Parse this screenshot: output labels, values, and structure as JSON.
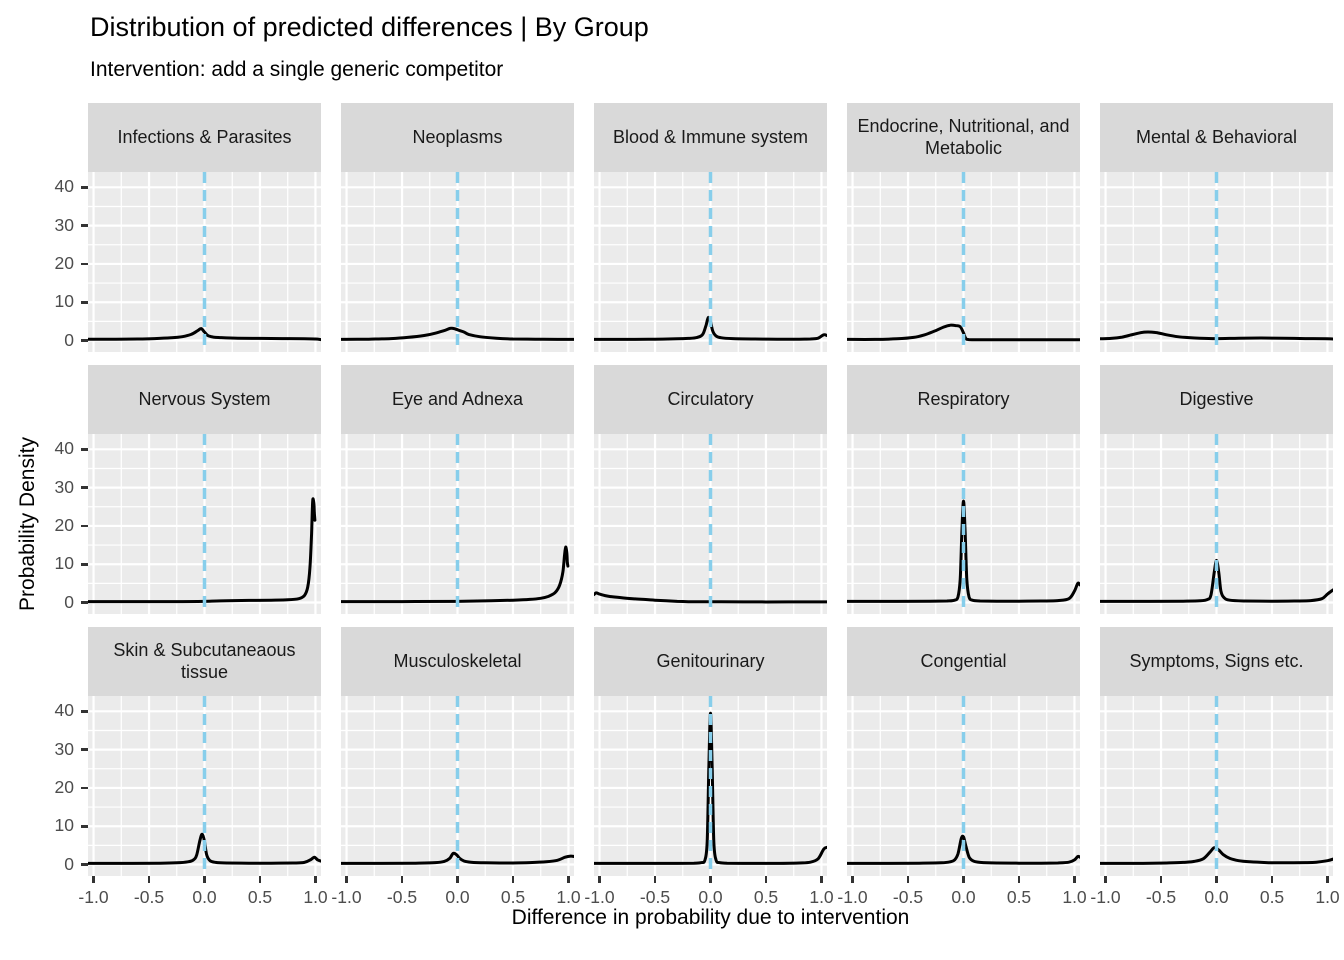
{
  "header": {
    "title": "Distribution of predicted differences | By Group",
    "subtitle": "Intervention: add a single generic competitor"
  },
  "axes": {
    "x_label": "Difference in probability due to intervention",
    "y_label": "Probability Density",
    "x_ticks": [
      "-1.0",
      "-0.5",
      "0.0",
      "0.5",
      "1.0"
    ],
    "x_tick_values": [
      -1.0,
      -0.5,
      0.0,
      0.5,
      1.0
    ],
    "y_ticks": [
      "0",
      "10",
      "20",
      "30",
      "40"
    ],
    "y_tick_values": [
      0,
      10,
      20,
      30,
      40
    ]
  },
  "colors": {
    "panel_bg": "#EBEBEB",
    "strip_bg": "#D9D9D9",
    "grid": "#FFFFFF",
    "curve": "#000000",
    "vline": "#87CEEB",
    "tick": "#333333",
    "tick_label": "#4D4D4D"
  },
  "chart_data": {
    "type": "area",
    "subtype": "faceted-density",
    "facet_rows": 3,
    "facet_cols": 5,
    "x_range": [
      -1.05,
      1.05
    ],
    "y_range": [
      -3,
      44
    ],
    "vline_x": 0,
    "grid_minor_x": [
      -0.75,
      -0.25,
      0.25,
      0.75
    ],
    "grid_minor_y": [
      5,
      15,
      25,
      35
    ],
    "facets": [
      {
        "label": "Infections & Parasites",
        "curve": [
          [
            -1.05,
            0.35
          ],
          [
            -0.8,
            0.35
          ],
          [
            -0.6,
            0.4
          ],
          [
            -0.45,
            0.5
          ],
          [
            -0.3,
            0.7
          ],
          [
            -0.2,
            1.0
          ],
          [
            -0.12,
            1.6
          ],
          [
            -0.06,
            2.6
          ],
          [
            -0.03,
            3.1
          ],
          [
            0.0,
            2.2
          ],
          [
            0.03,
            1.3
          ],
          [
            0.08,
            0.9
          ],
          [
            0.15,
            0.75
          ],
          [
            0.3,
            0.6
          ],
          [
            0.5,
            0.55
          ],
          [
            0.7,
            0.5
          ],
          [
            0.9,
            0.45
          ],
          [
            1.0,
            0.4
          ],
          [
            1.05,
            0.25
          ]
        ]
      },
      {
        "label": "Neoplasms",
        "curve": [
          [
            -1.05,
            0.3
          ],
          [
            -0.8,
            0.35
          ],
          [
            -0.6,
            0.5
          ],
          [
            -0.45,
            0.8
          ],
          [
            -0.3,
            1.3
          ],
          [
            -0.2,
            1.9
          ],
          [
            -0.12,
            2.6
          ],
          [
            -0.06,
            3.2
          ],
          [
            -0.02,
            3.0
          ],
          [
            0.02,
            2.6
          ],
          [
            0.06,
            2.2
          ],
          [
            0.1,
            1.6
          ],
          [
            0.2,
            1.0
          ],
          [
            0.35,
            0.6
          ],
          [
            0.5,
            0.4
          ],
          [
            0.7,
            0.35
          ],
          [
            0.9,
            0.3
          ],
          [
            1.05,
            0.3
          ]
        ]
      },
      {
        "label": "Blood & Immune system",
        "curve": [
          [
            -1.05,
            0.3
          ],
          [
            -0.7,
            0.3
          ],
          [
            -0.5,
            0.35
          ],
          [
            -0.3,
            0.45
          ],
          [
            -0.2,
            0.55
          ],
          [
            -0.12,
            0.8
          ],
          [
            -0.07,
            1.6
          ],
          [
            -0.04,
            4.0
          ],
          [
            -0.02,
            6.0
          ],
          [
            0.0,
            5.0
          ],
          [
            0.02,
            2.5
          ],
          [
            0.05,
            1.2
          ],
          [
            0.1,
            0.7
          ],
          [
            0.2,
            0.5
          ],
          [
            0.4,
            0.4
          ],
          [
            0.6,
            0.35
          ],
          [
            0.8,
            0.35
          ],
          [
            0.9,
            0.4
          ],
          [
            0.97,
            0.6
          ],
          [
            1.02,
            1.5
          ],
          [
            1.05,
            1.3
          ]
        ]
      },
      {
        "label": "Endocrine, Nutritional, and Metabolic",
        "curve": [
          [
            -1.05,
            0.3
          ],
          [
            -0.8,
            0.3
          ],
          [
            -0.6,
            0.45
          ],
          [
            -0.45,
            0.8
          ],
          [
            -0.35,
            1.5
          ],
          [
            -0.25,
            2.6
          ],
          [
            -0.18,
            3.5
          ],
          [
            -0.12,
            4.0
          ],
          [
            -0.07,
            3.9
          ],
          [
            -0.03,
            3.6
          ],
          [
            0.0,
            2.0
          ],
          [
            0.02,
            0.6
          ],
          [
            0.05,
            0.25
          ],
          [
            0.2,
            0.2
          ],
          [
            0.5,
            0.2
          ],
          [
            0.8,
            0.2
          ],
          [
            1.05,
            0.2
          ]
        ]
      },
      {
        "label": "Mental & Behavioral",
        "curve": [
          [
            -1.05,
            0.45
          ],
          [
            -0.95,
            0.55
          ],
          [
            -0.85,
            0.9
          ],
          [
            -0.75,
            1.6
          ],
          [
            -0.65,
            2.2
          ],
          [
            -0.55,
            2.1
          ],
          [
            -0.45,
            1.5
          ],
          [
            -0.35,
            1.0
          ],
          [
            -0.25,
            0.75
          ],
          [
            -0.15,
            0.6
          ],
          [
            0.0,
            0.5
          ],
          [
            0.2,
            0.6
          ],
          [
            0.4,
            0.65
          ],
          [
            0.6,
            0.6
          ],
          [
            0.8,
            0.5
          ],
          [
            1.0,
            0.45
          ],
          [
            1.05,
            0.4
          ]
        ]
      },
      {
        "label": "Nervous System",
        "curve": [
          [
            -1.05,
            0.25
          ],
          [
            -0.6,
            0.25
          ],
          [
            -0.2,
            0.25
          ],
          [
            0.0,
            0.3
          ],
          [
            0.2,
            0.45
          ],
          [
            0.4,
            0.55
          ],
          [
            0.6,
            0.6
          ],
          [
            0.75,
            0.7
          ],
          [
            0.85,
            1.0
          ],
          [
            0.9,
            1.8
          ],
          [
            0.93,
            4.0
          ],
          [
            0.95,
            9.0
          ],
          [
            0.965,
            18.0
          ],
          [
            0.975,
            26.5
          ],
          [
            0.985,
            26.0
          ],
          [
            0.99,
            23.5
          ],
          [
            0.995,
            21.5
          ]
        ]
      },
      {
        "label": "Eye and Adnexa",
        "curve": [
          [
            -1.05,
            0.25
          ],
          [
            -0.5,
            0.25
          ],
          [
            0.0,
            0.3
          ],
          [
            0.3,
            0.45
          ],
          [
            0.5,
            0.6
          ],
          [
            0.65,
            0.8
          ],
          [
            0.75,
            1.1
          ],
          [
            0.82,
            1.6
          ],
          [
            0.88,
            2.6
          ],
          [
            0.92,
            4.5
          ],
          [
            0.95,
            8.0
          ],
          [
            0.965,
            12.5
          ],
          [
            0.975,
            14.5
          ],
          [
            0.985,
            13.0
          ],
          [
            0.99,
            10.5
          ],
          [
            0.995,
            9.5
          ]
        ]
      },
      {
        "label": "Circulatory",
        "curve": [
          [
            -1.05,
            2.1
          ],
          [
            -1.03,
            2.5
          ],
          [
            -1.0,
            2.2
          ],
          [
            -0.95,
            1.8
          ],
          [
            -0.9,
            1.55
          ],
          [
            -0.8,
            1.25
          ],
          [
            -0.7,
            1.0
          ],
          [
            -0.6,
            0.8
          ],
          [
            -0.5,
            0.6
          ],
          [
            -0.4,
            0.45
          ],
          [
            -0.3,
            0.3
          ],
          [
            -0.2,
            0.22
          ],
          [
            -0.1,
            0.2
          ],
          [
            0.1,
            0.18
          ],
          [
            0.4,
            0.15
          ],
          [
            0.7,
            0.15
          ],
          [
            1.05,
            0.15
          ]
        ]
      },
      {
        "label": "Respiratory",
        "curve": [
          [
            -1.05,
            0.3
          ],
          [
            -0.6,
            0.3
          ],
          [
            -0.3,
            0.35
          ],
          [
            -0.15,
            0.4
          ],
          [
            -0.08,
            0.6
          ],
          [
            -0.05,
            1.5
          ],
          [
            -0.03,
            6.0
          ],
          [
            -0.015,
            18.0
          ],
          [
            0.0,
            26.5
          ],
          [
            0.015,
            18.0
          ],
          [
            0.03,
            6.0
          ],
          [
            0.05,
            1.5
          ],
          [
            0.08,
            0.6
          ],
          [
            0.15,
            0.4
          ],
          [
            0.3,
            0.35
          ],
          [
            0.5,
            0.35
          ],
          [
            0.7,
            0.4
          ],
          [
            0.85,
            0.5
          ],
          [
            0.95,
            1.0
          ],
          [
            1.0,
            3.0
          ],
          [
            1.03,
            5.0
          ],
          [
            1.05,
            4.6
          ]
        ]
      },
      {
        "label": "Digestive",
        "curve": [
          [
            -1.05,
            0.3
          ],
          [
            -0.6,
            0.3
          ],
          [
            -0.3,
            0.35
          ],
          [
            -0.15,
            0.45
          ],
          [
            -0.08,
            0.8
          ],
          [
            -0.05,
            2.0
          ],
          [
            -0.02,
            8.0
          ],
          [
            0.0,
            11.0
          ],
          [
            0.02,
            8.0
          ],
          [
            0.04,
            3.0
          ],
          [
            0.07,
            1.2
          ],
          [
            0.12,
            0.6
          ],
          [
            0.25,
            0.4
          ],
          [
            0.5,
            0.35
          ],
          [
            0.7,
            0.4
          ],
          [
            0.85,
            0.5
          ],
          [
            0.95,
            1.0
          ],
          [
            1.0,
            2.2
          ],
          [
            1.05,
            3.3
          ]
        ]
      },
      {
        "label": "Skin & Subcutaneaous tissue",
        "curve": [
          [
            -1.05,
            0.3
          ],
          [
            -0.7,
            0.3
          ],
          [
            -0.4,
            0.35
          ],
          [
            -0.25,
            0.45
          ],
          [
            -0.15,
            0.7
          ],
          [
            -0.1,
            1.2
          ],
          [
            -0.07,
            2.5
          ],
          [
            -0.04,
            6.5
          ],
          [
            -0.02,
            7.9
          ],
          [
            0.0,
            6.0
          ],
          [
            0.02,
            2.5
          ],
          [
            0.05,
            1.0
          ],
          [
            0.1,
            0.55
          ],
          [
            0.2,
            0.4
          ],
          [
            0.4,
            0.35
          ],
          [
            0.6,
            0.35
          ],
          [
            0.8,
            0.4
          ],
          [
            0.9,
            0.55
          ],
          [
            0.96,
            1.3
          ],
          [
            0.99,
            1.9
          ],
          [
            1.02,
            1.2
          ],
          [
            1.05,
            0.9
          ]
        ]
      },
      {
        "label": "Musculoskeletal",
        "curve": [
          [
            -1.05,
            0.3
          ],
          [
            -0.7,
            0.3
          ],
          [
            -0.4,
            0.35
          ],
          [
            -0.2,
            0.5
          ],
          [
            -0.12,
            0.8
          ],
          [
            -0.07,
            1.6
          ],
          [
            -0.04,
            2.9
          ],
          [
            -0.01,
            2.6
          ],
          [
            0.02,
            1.6
          ],
          [
            0.06,
            0.9
          ],
          [
            0.12,
            0.6
          ],
          [
            0.25,
            0.45
          ],
          [
            0.45,
            0.4
          ],
          [
            0.65,
            0.5
          ],
          [
            0.8,
            0.7
          ],
          [
            0.9,
            1.1
          ],
          [
            0.97,
            1.9
          ],
          [
            1.02,
            2.2
          ],
          [
            1.05,
            2.1
          ]
        ]
      },
      {
        "label": "Genitourinary",
        "curve": [
          [
            -1.05,
            0.3
          ],
          [
            -0.6,
            0.3
          ],
          [
            -0.3,
            0.3
          ],
          [
            -0.15,
            0.35
          ],
          [
            -0.08,
            0.5
          ],
          [
            -0.05,
            1.2
          ],
          [
            -0.03,
            6.0
          ],
          [
            -0.015,
            25.0
          ],
          [
            0.0,
            39.5
          ],
          [
            0.015,
            25.0
          ],
          [
            0.03,
            6.0
          ],
          [
            0.05,
            1.2
          ],
          [
            0.08,
            0.5
          ],
          [
            0.15,
            0.35
          ],
          [
            0.4,
            0.3
          ],
          [
            0.6,
            0.3
          ],
          [
            0.8,
            0.4
          ],
          [
            0.9,
            0.6
          ],
          [
            0.97,
            1.5
          ],
          [
            1.02,
            4.0
          ],
          [
            1.05,
            4.5
          ]
        ]
      },
      {
        "label": "Congential",
        "curve": [
          [
            -1.05,
            0.3
          ],
          [
            -0.7,
            0.3
          ],
          [
            -0.4,
            0.35
          ],
          [
            -0.2,
            0.45
          ],
          [
            -0.12,
            0.7
          ],
          [
            -0.08,
            1.2
          ],
          [
            -0.05,
            2.8
          ],
          [
            -0.02,
            6.8
          ],
          [
            0.0,
            7.2
          ],
          [
            0.02,
            5.0
          ],
          [
            0.05,
            2.0
          ],
          [
            0.09,
            0.9
          ],
          [
            0.15,
            0.55
          ],
          [
            0.3,
            0.4
          ],
          [
            0.5,
            0.35
          ],
          [
            0.7,
            0.35
          ],
          [
            0.85,
            0.4
          ],
          [
            0.95,
            0.6
          ],
          [
            1.0,
            1.2
          ],
          [
            1.03,
            2.1
          ],
          [
            1.05,
            1.9
          ]
        ]
      },
      {
        "label": "Symptoms, Signs etc.",
        "curve": [
          [
            -1.05,
            0.3
          ],
          [
            -0.7,
            0.3
          ],
          [
            -0.45,
            0.4
          ],
          [
            -0.3,
            0.55
          ],
          [
            -0.2,
            0.8
          ],
          [
            -0.12,
            1.5
          ],
          [
            -0.06,
            3.2
          ],
          [
            -0.02,
            4.4
          ],
          [
            0.02,
            3.8
          ],
          [
            0.06,
            2.6
          ],
          [
            0.12,
            1.6
          ],
          [
            0.2,
            1.0
          ],
          [
            0.3,
            0.7
          ],
          [
            0.45,
            0.5
          ],
          [
            0.6,
            0.45
          ],
          [
            0.8,
            0.5
          ],
          [
            0.9,
            0.6
          ],
          [
            1.0,
            1.0
          ],
          [
            1.05,
            1.4
          ]
        ]
      }
    ]
  }
}
